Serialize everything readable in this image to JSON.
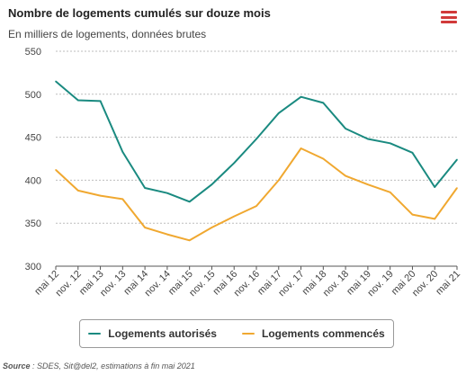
{
  "chart_data": {
    "type": "line",
    "title": "Nombre de logements cumulés sur douze mois",
    "subtitle": "En milliers de logements, données brutes",
    "ylim": [
      300,
      550
    ],
    "yticks": [
      300,
      350,
      400,
      450,
      500,
      550
    ],
    "grid": true,
    "legend_position": "bottom",
    "x": [
      "mai 12",
      "nov. 12",
      "mai 13",
      "nov. 13",
      "mai 14",
      "nov. 14",
      "mai 15",
      "nov. 15",
      "mai 16",
      "nov. 16",
      "mai 17",
      "nov. 17",
      "mai 18",
      "nov. 18",
      "mai 19",
      "nov. 19",
      "mai 20",
      "nov. 20",
      "mai 21"
    ],
    "series": [
      {
        "name": "Logements autorisés",
        "color": "#1a8a80",
        "values": [
          515,
          493,
          492,
          433,
          391,
          385,
          375,
          395,
          420,
          448,
          478,
          497,
          490,
          460,
          448,
          443,
          432,
          392,
          424
        ]
      },
      {
        "name": "Logements commencés",
        "color": "#f0a830",
        "values": [
          412,
          388,
          382,
          378,
          345,
          337,
          330,
          345,
          358,
          370,
          400,
          437,
          425,
          405,
          395,
          386,
          360,
          355,
          391
        ]
      }
    ]
  },
  "menu_icon": "hamburger-menu-icon",
  "source": {
    "label": "Source",
    "text": " : SDES, Sit@del2, estimations à fin mai 2021"
  }
}
